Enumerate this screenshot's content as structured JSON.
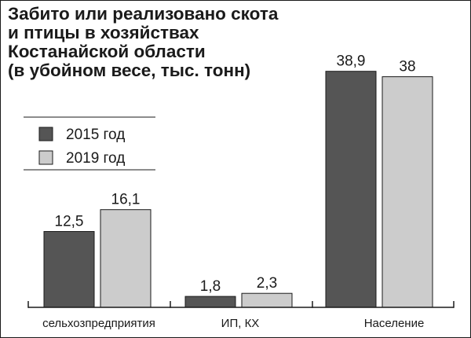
{
  "title_lines": [
    "Забито или реализовано скота",
    "и птицы в хозяйствах",
    "Костанайской области",
    "(в убойном весе, тыс. тонн)"
  ],
  "chart_data": {
    "type": "bar",
    "categories": [
      "сельхозпредприятия",
      "ИП, КХ",
      "Население"
    ],
    "series": [
      {
        "name": "2015 год",
        "values": [
          12.5,
          1.8,
          38.9
        ],
        "labels": [
          "12,5",
          "1,8",
          "38,9"
        ],
        "color": "#555555"
      },
      {
        "name": "2019 год",
        "values": [
          16.1,
          2.3,
          38
        ],
        "labels": [
          "16,1",
          "2,3",
          "38"
        ],
        "color": "#cccccc"
      }
    ],
    "ylim": [
      0,
      40
    ],
    "grid": false,
    "legend_position": "left"
  }
}
